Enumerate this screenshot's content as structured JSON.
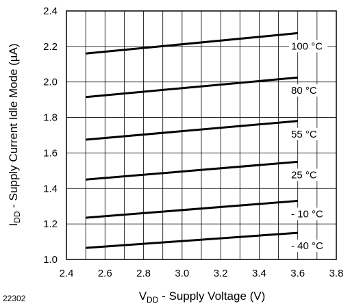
{
  "chart_data": {
    "type": "line",
    "title": "",
    "xlabel": {
      "main": "V",
      "sub": "DD",
      "rest": " - Supply Voltage (V)"
    },
    "ylabel": {
      "main": "I",
      "sub": "DD",
      "rest": " - Supply Current Idle Mode (µA)"
    },
    "figure_id": "22302",
    "xlim": [
      2.4,
      3.8
    ],
    "ylim": [
      1.0,
      2.4
    ],
    "x_ticks": [
      "2.4",
      "2.6",
      "2.8",
      "3.0",
      "3.2",
      "3.4",
      "3.6",
      "3.8"
    ],
    "y_ticks": [
      "1.0",
      "1.2",
      "1.4",
      "1.6",
      "1.8",
      "2.0",
      "2.2",
      "2.4"
    ],
    "grid": true,
    "series": [
      {
        "name": "100 °C",
        "x": [
          2.5,
          3.6
        ],
        "y": [
          2.16,
          2.275
        ]
      },
      {
        "name": "80 °C",
        "x": [
          2.5,
          3.6
        ],
        "y": [
          1.915,
          2.025
        ]
      },
      {
        "name": "55 °C",
        "x": [
          2.5,
          3.6
        ],
        "y": [
          1.675,
          1.78
        ]
      },
      {
        "name": "25 °C",
        "x": [
          2.5,
          3.6
        ],
        "y": [
          1.45,
          1.55
        ]
      },
      {
        "name": "- 10 °C",
        "x": [
          2.5,
          3.6
        ],
        "y": [
          1.235,
          1.33
        ]
      },
      {
        "name": "- 40 °C",
        "x": [
          2.5,
          3.6
        ],
        "y": [
          1.065,
          1.15
        ]
      }
    ]
  }
}
